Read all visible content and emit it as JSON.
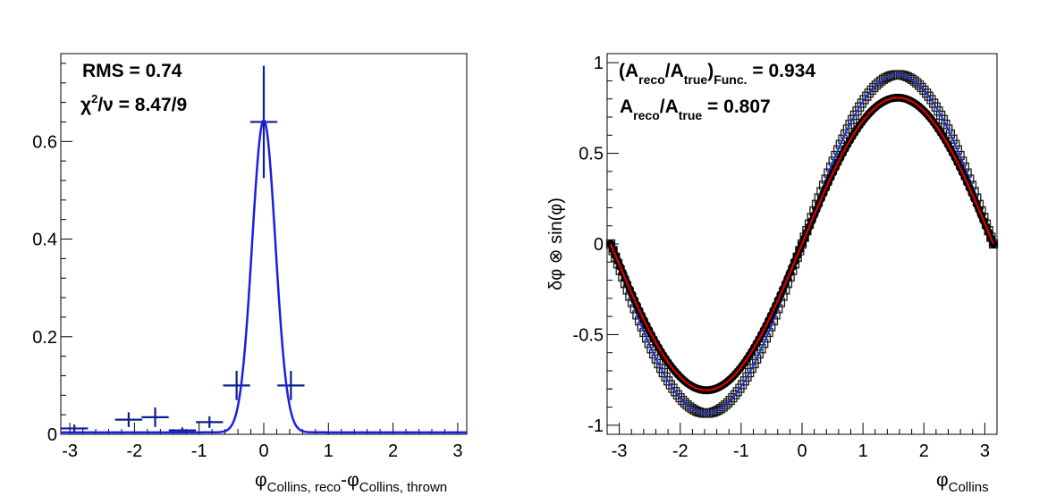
{
  "chart_data": [
    {
      "type": "scatter",
      "panel": "left",
      "xlabel": {
        "main": "φ",
        "sub1": "Collins, reco",
        "mid": "-φ",
        "sub2": "Collins, thrown"
      },
      "ylabel": "",
      "xlim": [
        -3.14,
        3.14
      ],
      "ylim": [
        0,
        0.78
      ],
      "xticks": [
        "-3",
        "-2",
        "-1",
        "0",
        "1",
        "2",
        "3"
      ],
      "yticks": [
        "0",
        "0.2",
        "0.4",
        "0.6"
      ],
      "annotations": {
        "rms": "RMS = 0.74",
        "chi2_chi": "χ",
        "chi2_sup": "2",
        "chi2_rest": "/ν = 8.47/9"
      },
      "points": [
        {
          "x": -2.93,
          "y": 0.012,
          "xerr": 0.21,
          "yerr": 0.008
        },
        {
          "x": -2.09,
          "y": 0.03,
          "xerr": 0.21,
          "yerr": 0.015
        },
        {
          "x": -1.68,
          "y": 0.035,
          "xerr": 0.21,
          "yerr": 0.02
        },
        {
          "x": -1.26,
          "y": 0.008,
          "xerr": 0.21,
          "yerr": 0.006
        },
        {
          "x": -0.84,
          "y": 0.025,
          "xerr": 0.21,
          "yerr": 0.012
        },
        {
          "x": -0.42,
          "y": 0.1,
          "xerr": 0.21,
          "yerr": 0.03
        },
        {
          "x": 0.0,
          "y": 0.64,
          "xerr": 0.21,
          "yerr": 0.115
        },
        {
          "x": 0.42,
          "y": 0.1,
          "xerr": 0.21,
          "yerr": 0.03
        }
      ],
      "fit": {
        "function": "gaussian + constant",
        "amplitude": 0.64,
        "mean": 0.0,
        "sigma": 0.18,
        "constant": 0.004
      },
      "colors": {
        "points": "#0b1f8f",
        "fit": "#1d1de6"
      }
    },
    {
      "type": "line",
      "panel": "right",
      "xlabel": {
        "main": "φ",
        "sub": "Collins"
      },
      "ylabel": "δφ ⊗ sin(φ)",
      "xlim": [
        -3.2,
        3.2
      ],
      "ylim": [
        -1.05,
        1.05
      ],
      "xticks": [
        "-3",
        "-2",
        "-1",
        "0",
        "1",
        "2",
        "3"
      ],
      "yticks": [
        "-1",
        "-0.5",
        "0",
        "0.5",
        "1"
      ],
      "annotations": {
        "line1": {
          "open": "(A",
          "sub1": "reco",
          "mid": "/A",
          "sub2": "true",
          "close": ")",
          "sub3": "Func.",
          "value": " = 0.934"
        },
        "line2": {
          "a": "A",
          "sub1": "reco",
          "mid": "/A",
          "sub2": "true",
          "value": " = 0.807"
        }
      },
      "series": [
        {
          "amplitude": 0.934,
          "marker": "open-square",
          "color": "#1a1a1a"
        },
        {
          "amplitude": 0.934,
          "style": "line",
          "color": "#2233cc"
        },
        {
          "amplitude": 0.807,
          "marker": "filled-circle",
          "color": "#000000"
        },
        {
          "amplitude": 0.807,
          "style": "line",
          "color": "#dd0000"
        }
      ]
    }
  ]
}
